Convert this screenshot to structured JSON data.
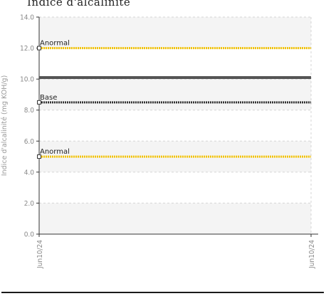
{
  "chart_data": {
    "type": "line",
    "title": "Indice d'alcalinité",
    "ylabel": "Indice d'alcalinité (mg KOH/g)",
    "xlabel": "",
    "ylim": [
      0,
      14
    ],
    "y_ticks": [
      "0.0",
      "2.0",
      "4.0",
      "6.0",
      "8.0",
      "10.0",
      "12.0",
      "14.0"
    ],
    "x_ticks": [
      "Jun10/24",
      "Jun10/24"
    ],
    "grid": true,
    "series": [
      {
        "values": [
          10.1,
          10.1
        ],
        "color": "#555555"
      }
    ],
    "reference_lines": [
      {
        "label": "Anormal",
        "value": 12.0,
        "color": "#f2c200"
      },
      {
        "label": "Base",
        "value": 8.5,
        "color": "#333333"
      },
      {
        "label": "Anormal",
        "value": 5.0,
        "color": "#f2c200"
      }
    ],
    "colors": {
      "band": "#f4f4f4",
      "axis": "#333333",
      "grid": "#d5d5d5"
    }
  }
}
